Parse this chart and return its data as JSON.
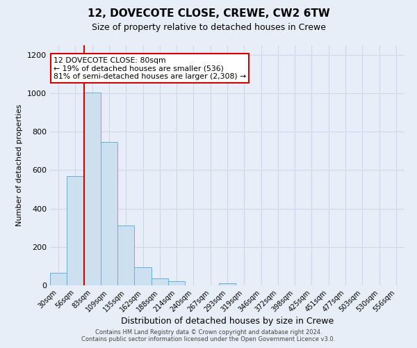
{
  "title": "12, DOVECOTE CLOSE, CREWE, CW2 6TW",
  "subtitle": "Size of property relative to detached houses in Crewe",
  "xlabel": "Distribution of detached houses by size in Crewe",
  "ylabel": "Number of detached properties",
  "bar_labels": [
    "30sqm",
    "56sqm",
    "83sqm",
    "109sqm",
    "135sqm",
    "162sqm",
    "188sqm",
    "214sqm",
    "240sqm",
    "267sqm",
    "293sqm",
    "319sqm",
    "346sqm",
    "372sqm",
    "398sqm",
    "425sqm",
    "451sqm",
    "477sqm",
    "503sqm",
    "530sqm",
    "556sqm"
  ],
  "bar_values": [
    65,
    570,
    1005,
    745,
    310,
    95,
    38,
    22,
    0,
    0,
    10,
    0,
    0,
    0,
    0,
    0,
    0,
    0,
    0,
    0,
    0
  ],
  "bar_color": "#cce0f0",
  "bar_edge_color": "#6aaed6",
  "bg_color": "#e8eef8",
  "grid_color": "#d0d8e8",
  "property_line_idx": 2,
  "annotation_line1": "12 DOVECOTE CLOSE: 80sqm",
  "annotation_line2": "← 19% of detached houses are smaller (536)",
  "annotation_line3": "81% of semi-detached houses are larger (2,308) →",
  "annotation_box_color": "#ffffff",
  "annotation_box_edge_color": "#cc0000",
  "red_line_color": "#cc0000",
  "ylim": [
    0,
    1250
  ],
  "yticks": [
    0,
    200,
    400,
    600,
    800,
    1000,
    1200
  ],
  "footer1": "Contains HM Land Registry data © Crown copyright and database right 2024.",
  "footer2": "Contains public sector information licensed under the Open Government Licence v3.0."
}
